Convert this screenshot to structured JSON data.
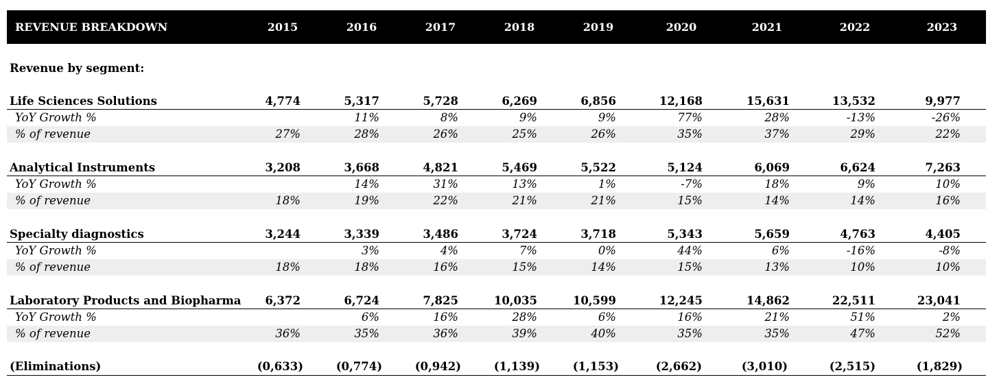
{
  "header": {
    "title": "REVENUE BREAKDOWN",
    "years": [
      "2015",
      "2016",
      "2017",
      "2018",
      "2019",
      "2020",
      "2021",
      "2022",
      "2023"
    ]
  },
  "section_label": "Revenue by segment:",
  "segments": [
    {
      "name": "Life Sciences Solutions",
      "revenue": [
        "4,774",
        "5,317",
        "5,728",
        "6,269",
        "6,856",
        "12,168",
        "15,631",
        "13,532",
        "9,977"
      ],
      "growth_label": "YoY Growth %",
      "growth": [
        "",
        "11%",
        "8%",
        "9%",
        "9%",
        "77%",
        "28%",
        "-13%",
        "-26%"
      ],
      "share_label": "% of revenue",
      "share": [
        "27%",
        "28%",
        "26%",
        "25%",
        "26%",
        "35%",
        "37%",
        "29%",
        "22%"
      ]
    },
    {
      "name": "Analytical Instruments",
      "revenue": [
        "3,208",
        "3,668",
        "4,821",
        "5,469",
        "5,522",
        "5,124",
        "6,069",
        "6,624",
        "7,263"
      ],
      "growth_label": "YoY Growth %",
      "growth": [
        "",
        "14%",
        "31%",
        "13%",
        "1%",
        "-7%",
        "18%",
        "9%",
        "10%"
      ],
      "share_label": "% of revenue",
      "share": [
        "18%",
        "19%",
        "22%",
        "21%",
        "21%",
        "15%",
        "14%",
        "14%",
        "16%"
      ]
    },
    {
      "name": "Specialty diagnostics",
      "revenue": [
        "3,244",
        "3,339",
        "3,486",
        "3,724",
        "3,718",
        "5,343",
        "5,659",
        "4,763",
        "4,405"
      ],
      "growth_label": "YoY Growth %",
      "growth": [
        "",
        "3%",
        "4%",
        "7%",
        "0%",
        "44%",
        "6%",
        "-16%",
        "-8%"
      ],
      "share_label": "% of revenue",
      "share": [
        "18%",
        "18%",
        "16%",
        "15%",
        "14%",
        "15%",
        "13%",
        "10%",
        "10%"
      ]
    },
    {
      "name": "Laboratory Products and Biopharma Se",
      "revenue": [
        "6,372",
        "6,724",
        "7,825",
        "10,035",
        "10,599",
        "12,245",
        "14,862",
        "22,511",
        "23,041"
      ],
      "growth_label": "YoY Growth %",
      "growth": [
        "",
        "6%",
        "16%",
        "28%",
        "6%",
        "16%",
        "21%",
        "51%",
        "2%"
      ],
      "share_label": "% of revenue",
      "share": [
        "36%",
        "35%",
        "36%",
        "39%",
        "40%",
        "35%",
        "35%",
        "47%",
        "52%"
      ]
    }
  ],
  "eliminations": {
    "name": "(Eliminations)",
    "values": [
      "(0,633)",
      "(0,774)",
      "(0,942)",
      "(1,139)",
      "(1,153)",
      "(2,662)",
      "(3,010)",
      "(2,515)",
      "(1,829)"
    ]
  }
}
